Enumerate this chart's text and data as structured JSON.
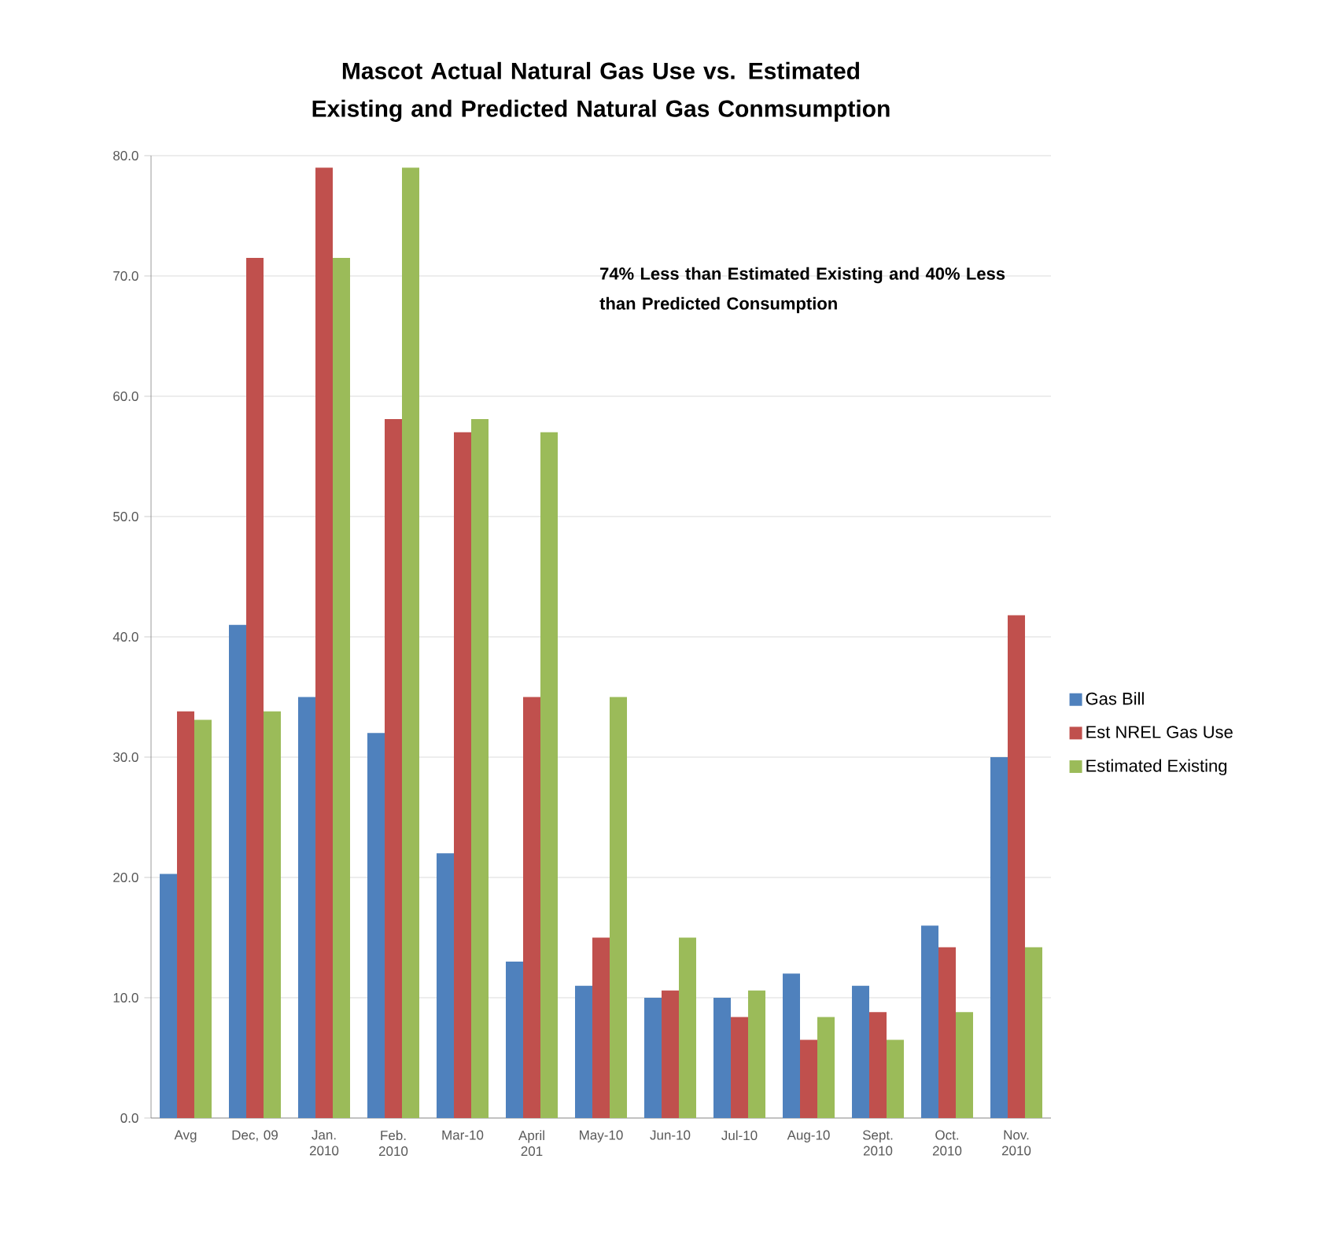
{
  "chart_data": {
    "type": "bar",
    "title": "Mascot Actual Natural Gas Use vs. Estimated Existing and Predicted Natural Gas  Conmsumption",
    "categories": [
      "Avg",
      "Dec, 09",
      "Jan. 2010",
      "Feb. 2010",
      "Mar-10",
      "April 201",
      "May-10",
      "Jun-10",
      "Jul-10",
      "Aug-10",
      "Sept. 2010",
      "Oct. 2010",
      "Nov. 2010"
    ],
    "series": [
      {
        "name": "Gas Bill",
        "color": "#4f81bd",
        "values": [
          20.3,
          41,
          35,
          32,
          22,
          13,
          11,
          10,
          10,
          12,
          11,
          16,
          30
        ]
      },
      {
        "name": "Est NREL Gas Use",
        "color": "#c0504d",
        "values": [
          33.8,
          71.5,
          79,
          58.1,
          57,
          35,
          15,
          10.6,
          8.4,
          6.5,
          8.8,
          14.2,
          41.8
        ]
      },
      {
        "name": "Estimated Existing",
        "color": "#9bbb59",
        "values": [
          33.1,
          33.8,
          71.5,
          79,
          58.1,
          57,
          35,
          15,
          10.6,
          8.4,
          6.5,
          8.8,
          14.2
        ]
      }
    ],
    "ylim": [
      0,
      80
    ],
    "yticks": [
      {
        "value": 0,
        "label": "0.0"
      },
      {
        "value": 10,
        "label": "10.0"
      },
      {
        "value": 20,
        "label": "20.0"
      },
      {
        "value": 30,
        "label": "30.0"
      },
      {
        "value": 40,
        "label": "40.0"
      },
      {
        "value": 50,
        "label": "50.0"
      },
      {
        "value": 60,
        "label": "60.0"
      },
      {
        "value": 70,
        "label": "70.0"
      },
      {
        "value": 80,
        "label": "80.0"
      }
    ],
    "grid": "y",
    "legend": "right",
    "annotations": [
      "74% Less than Estimated Existing and 40% Less than Predicted Consumption"
    ]
  }
}
